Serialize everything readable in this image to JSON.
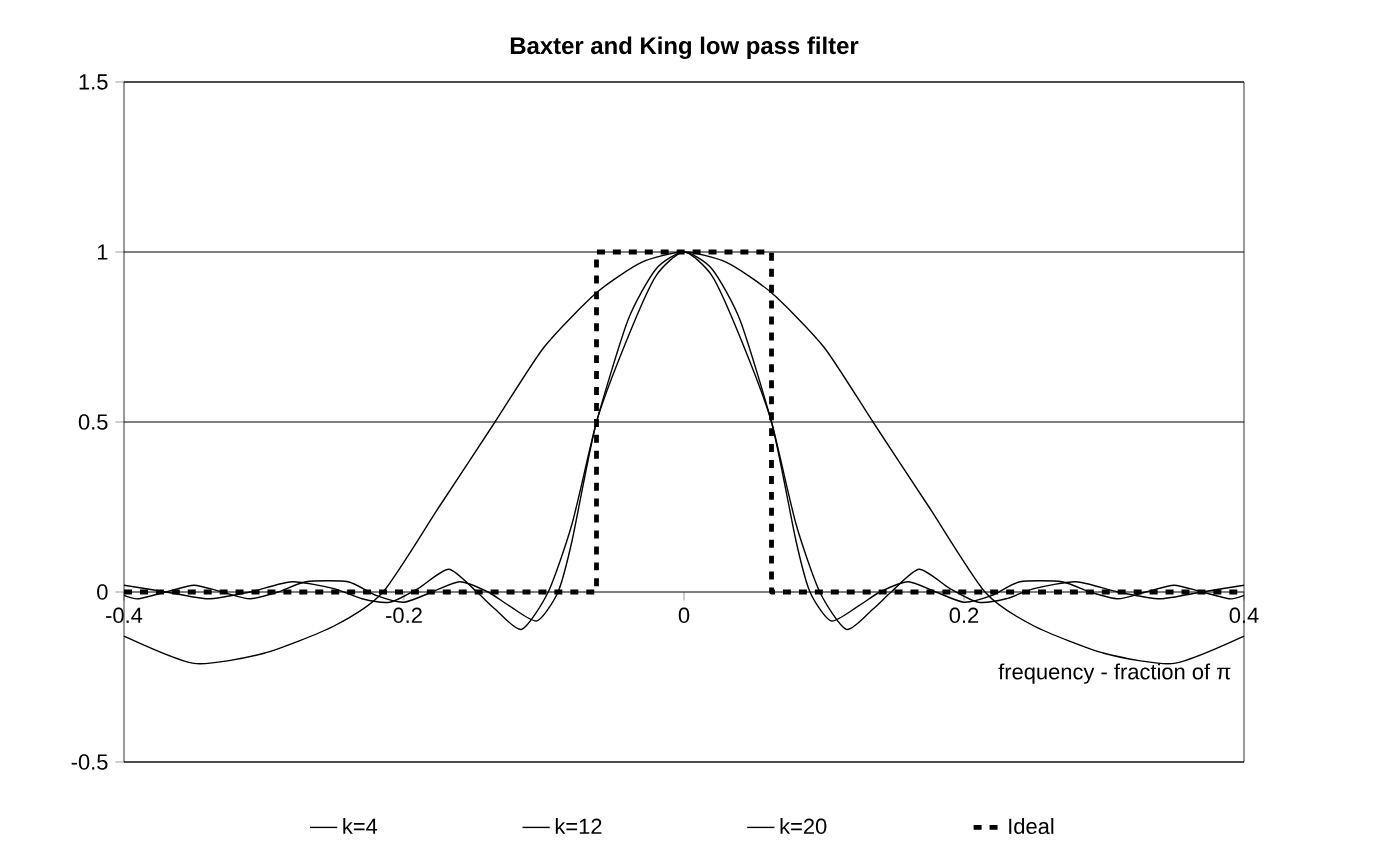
{
  "chart_data": {
    "type": "line",
    "title": "**Baxter and King low pass filter**",
    "xlabel": "frequency - fraction of π",
    "xlim": [
      -0.4,
      0.4
    ],
    "xticks": [
      -0.4,
      -0.2,
      0,
      0.2,
      0.4
    ],
    "ylim": [
      -0.5,
      1.5
    ],
    "yticks": [
      -0.5,
      0,
      0.5,
      1,
      1.5
    ],
    "grid": "y",
    "legend": "bottom",
    "marker": "none",
    "series": [
      {
        "name": "k=4",
        "color": "#000000",
        "line_style": "solid",
        "x": [
          -0.4,
          -0.35,
          -0.3,
          -0.25,
          -0.215,
          -0.175,
          -0.135,
          -0.1,
          -0.0625,
          -0.03,
          0,
          0.03,
          0.0625,
          0.1,
          0.135,
          0.175,
          0.215,
          0.25,
          0.3,
          0.35,
          0.4
        ],
        "values": [
          -0.13,
          -0.21,
          -0.18,
          -0.1,
          0,
          0.25,
          0.5,
          0.72,
          0.88,
          0.97,
          1,
          0.97,
          0.88,
          0.72,
          0.5,
          0.25,
          0,
          -0.1,
          -0.18,
          -0.21,
          -0.13
        ]
      },
      {
        "name": "k=12",
        "color": "#000000",
        "line_style": "solid",
        "x": [
          -0.4,
          -0.37,
          -0.34,
          -0.31,
          -0.28,
          -0.25,
          -0.23,
          -0.21,
          -0.19,
          -0.168,
          -0.148,
          -0.135,
          -0.116,
          -0.097,
          -0.08,
          -0.0625,
          -0.04,
          -0.02,
          0,
          0.02,
          0.04,
          0.0625,
          0.08,
          0.097,
          0.116,
          0.135,
          0.148,
          0.168,
          0.19,
          0.21,
          0.23,
          0.25,
          0.28,
          0.31,
          0.34,
          0.37,
          0.4
        ],
        "values": [
          0.02,
          0,
          -0.02,
          0,
          0.03,
          0.01,
          -0.02,
          -0.03,
          0.01,
          0.067,
          0,
          -0.05,
          -0.11,
          0,
          0.2,
          0.5,
          0.8,
          0.95,
          1,
          0.95,
          0.8,
          0.5,
          0.2,
          0,
          -0.11,
          -0.05,
          0,
          0.067,
          0.01,
          -0.03,
          -0.02,
          0.01,
          0.03,
          0,
          -0.02,
          0,
          0.02
        ]
      },
      {
        "name": "k=20",
        "color": "#000000",
        "line_style": "solid",
        "x": [
          -0.4,
          -0.39,
          -0.37,
          -0.35,
          -0.33,
          -0.31,
          -0.29,
          -0.27,
          -0.24,
          -0.22,
          -0.2,
          -0.18,
          -0.16,
          -0.14,
          -0.125,
          -0.105,
          -0.09,
          -0.08,
          -0.0625,
          -0.04,
          -0.02,
          0,
          0.02,
          0.04,
          0.0625,
          0.08,
          0.09,
          0.105,
          0.125,
          0.14,
          0.16,
          0.18,
          0.2,
          0.22,
          0.24,
          0.27,
          0.29,
          0.31,
          0.33,
          0.35,
          0.37,
          0.39,
          0.4
        ],
        "values": [
          -0.01,
          -0.02,
          0,
          0.02,
          0,
          -0.02,
          0,
          0.03,
          0.03,
          -0.01,
          -0.03,
          0,
          0.03,
          0,
          -0.04,
          -0.085,
          0,
          0.15,
          0.5,
          0.75,
          0.93,
          1,
          0.93,
          0.75,
          0.5,
          0.15,
          0,
          -0.085,
          -0.04,
          0,
          0.03,
          0,
          -0.03,
          -0.01,
          0.03,
          0.03,
          0,
          -0.02,
          0,
          0.02,
          0,
          -0.02,
          -0.01
        ]
      },
      {
        "name": "Ideal",
        "color": "#000000",
        "line_style": "dashed",
        "x": [
          -0.4,
          -0.0625,
          -0.0625,
          0.0625,
          0.0625,
          0.4
        ],
        "values": [
          0,
          0,
          1,
          1,
          0,
          0
        ]
      }
    ]
  }
}
